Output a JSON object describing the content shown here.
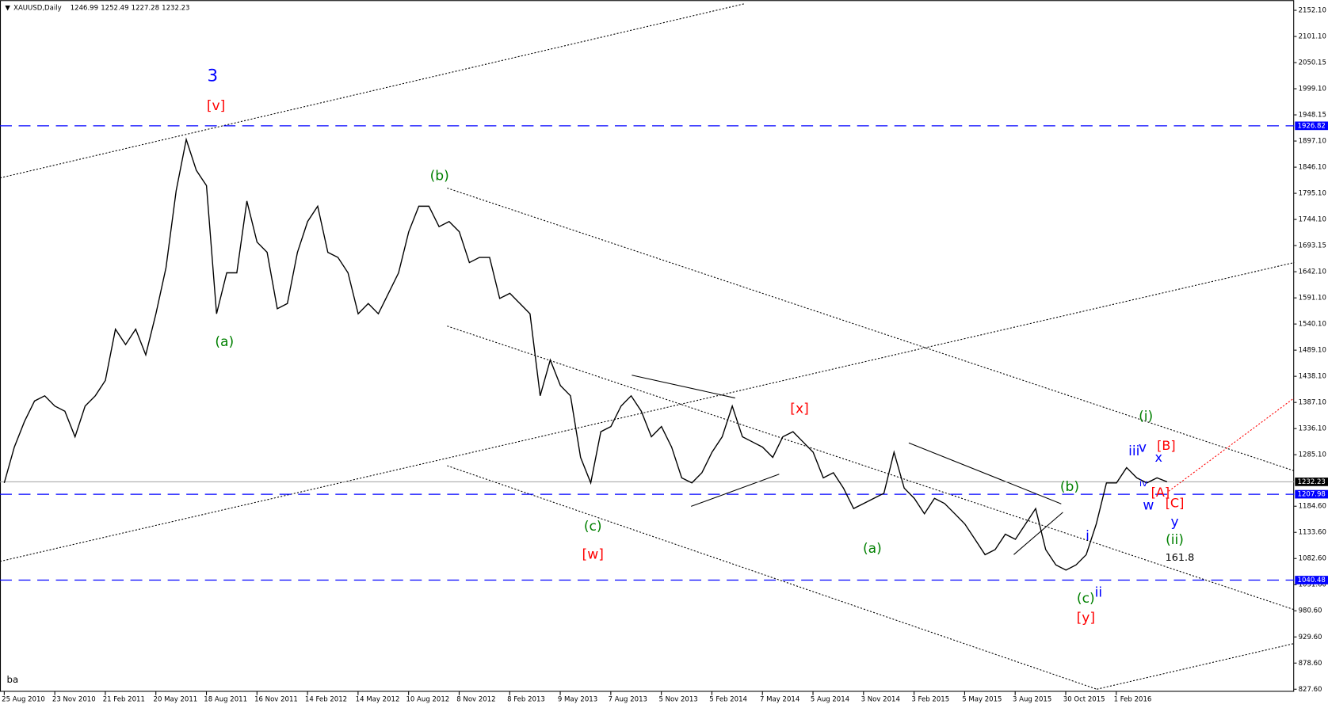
{
  "chart_data": {
    "type": "line",
    "symbol": "XAUUSD,Daily",
    "ohlc": [
      1246.99,
      1252.49,
      1227.28,
      1232.23
    ],
    "corner_text": "ba",
    "ylim": [
      827.6,
      2152.1
    ],
    "yticks": [
      {
        "value": 827.6,
        "label": "827.60"
      },
      {
        "value": 878.6,
        "label": "878.60"
      },
      {
        "value": 929.6,
        "label": "929.60"
      },
      {
        "value": 980.6,
        "label": "980.60"
      },
      {
        "value": 1031.6,
        "label": "1031.60"
      },
      {
        "value": 1082.6,
        "label": "1082.60"
      },
      {
        "value": 1133.6,
        "label": "1133.60"
      },
      {
        "value": 1184.6,
        "label": "1184.60"
      },
      {
        "value": 1285.1,
        "label": "1285.10"
      },
      {
        "value": 1336.1,
        "label": "1336.10"
      },
      {
        "value": 1387.1,
        "label": "1387.10"
      },
      {
        "value": 1438.1,
        "label": "1438.10"
      },
      {
        "value": 1489.1,
        "label": "1489.10"
      },
      {
        "value": 1540.1,
        "label": "1540.10"
      },
      {
        "value": 1591.1,
        "label": "1591.10"
      },
      {
        "value": 1642.1,
        "label": "1642.10"
      },
      {
        "value": 1693.15,
        "label": "1693.15"
      },
      {
        "value": 1744.1,
        "label": "1744.10"
      },
      {
        "value": 1795.1,
        "label": "1795.10"
      },
      {
        "value": 1846.1,
        "label": "1846.10"
      },
      {
        "value": 1897.1,
        "label": "1897.10"
      },
      {
        "value": 1948.15,
        "label": "1948.15"
      },
      {
        "value": 1999.1,
        "label": "1999.10"
      },
      {
        "value": 2050.15,
        "label": "2050.15"
      },
      {
        "value": 2101.1,
        "label": "2101.10"
      },
      {
        "value": 2152.1,
        "label": "2152.10"
      }
    ],
    "xticks": [
      "25 Aug 2010",
      "23 Nov 2010",
      "21 Feb 2011",
      "20 May 2011",
      "18 Aug 2011",
      "16 Nov 2011",
      "14 Feb 2012",
      "14 May 2012",
      "10 Aug 2012",
      "8 Nov 2012",
      "8 Feb 2013",
      "9 May 2013",
      "7 Aug 2013",
      "5 Nov 2013",
      "5 Feb 2014",
      "7 May 2014",
      "5 Aug 2014",
      "3 Nov 2014",
      "3 Feb 2015",
      "5 May 2015",
      "3 Aug 2015",
      "30 Oct 2015",
      "1 Feb 2016"
    ],
    "levels": [
      1926.82,
      1207.98,
      1040.48
    ],
    "level_color": "#0000ff",
    "series": [
      {
        "name": "XAUUSD",
        "color": "#000000",
        "values": [
          1230,
          1300,
          1350,
          1390,
          1400,
          1380,
          1370,
          1320,
          1380,
          1400,
          1430,
          1530,
          1500,
          1530,
          1480,
          1560,
          1650,
          1800,
          1900,
          1840,
          1810,
          1560,
          1640,
          1640,
          1780,
          1700,
          1680,
          1570,
          1580,
          1680,
          1740,
          1770,
          1680,
          1670,
          1640,
          1560,
          1580,
          1560,
          1600,
          1640,
          1720,
          1770,
          1770,
          1730,
          1740,
          1720,
          1660,
          1670,
          1670,
          1590,
          1600,
          1580,
          1560,
          1400,
          1470,
          1420,
          1400,
          1280,
          1230,
          1330,
          1340,
          1380,
          1400,
          1370,
          1320,
          1340,
          1300,
          1240,
          1230,
          1250,
          1290,
          1320,
          1380,
          1320,
          1310,
          1300,
          1280,
          1320,
          1330,
          1310,
          1290,
          1240,
          1250,
          1220,
          1180,
          1190,
          1200,
          1210,
          1290,
          1220,
          1200,
          1170,
          1200,
          1190,
          1170,
          1150,
          1120,
          1090,
          1100,
          1130,
          1120,
          1150,
          1180,
          1100,
          1070,
          1060,
          1070,
          1090,
          1150,
          1230,
          1230,
          1260,
          1240,
          1230,
          1240,
          1232.23
        ]
      }
    ],
    "annotations": [
      {
        "text": "3",
        "color": "#0000ff"
      },
      {
        "text": "[v]",
        "color": "#ff0000"
      },
      {
        "text": "(a)",
        "color": "#008000"
      },
      {
        "text": "(b)",
        "color": "#008000"
      },
      {
        "text": "(c)",
        "color": "#008000"
      },
      {
        "text": "[w]",
        "color": "#ff0000"
      },
      {
        "text": "[x]",
        "color": "#ff0000"
      },
      {
        "text": "(a)",
        "color": "#008000"
      },
      {
        "text": "(b)",
        "color": "#008000"
      },
      {
        "text": "(c)",
        "color": "#008000"
      },
      {
        "text": "ii",
        "color": "#0000ff"
      },
      {
        "text": "[y]",
        "color": "#ff0000"
      },
      {
        "text": "i",
        "color": "#0000ff"
      },
      {
        "text": "(i)",
        "color": "#008000"
      },
      {
        "text": "iii",
        "color": "#0000ff"
      },
      {
        "text": "v",
        "color": "#0000ff"
      },
      {
        "text": "[B]",
        "color": "#ff0000"
      },
      {
        "text": "x",
        "color": "#0000ff"
      },
      {
        "text": "iv",
        "color": "#0000ff"
      },
      {
        "text": "[A]",
        "color": "#ff0000"
      },
      {
        "text": "w",
        "color": "#0000ff"
      },
      {
        "text": "[C]",
        "color": "#ff0000"
      },
      {
        "text": "y",
        "color": "#0000ff"
      },
      {
        "text": "(ii)",
        "color": "#008000"
      },
      {
        "text": "161.8",
        "color": "#000000"
      }
    ]
  }
}
